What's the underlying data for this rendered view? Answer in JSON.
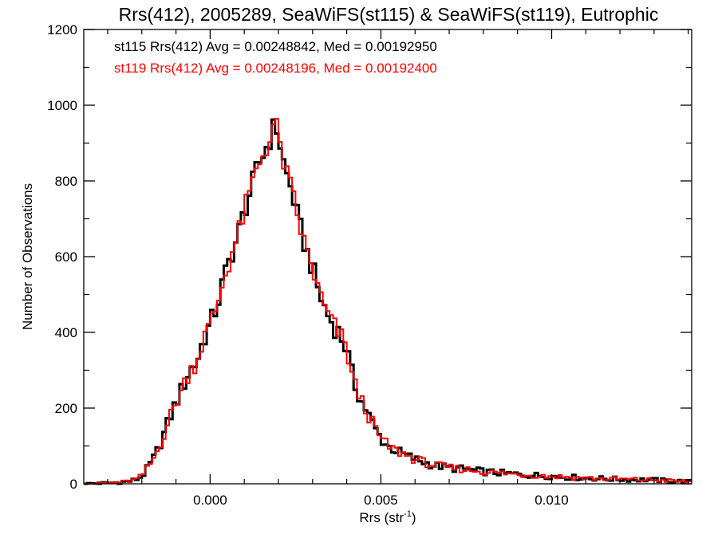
{
  "chart_data": {
    "type": "histogram-step",
    "title": "Rrs(412), 2005289, SeaWiFS(st115) & SeaWiFS(st119), Eutrophic",
    "xlabel": "Rrs (str",
    "xlabel_sup": "-1",
    "xlabel_end": ")",
    "ylabel": "Number of Observations",
    "xlim": [
      -0.0037,
      0.0141
    ],
    "ylim": [
      0,
      1200
    ],
    "xticks": [
      {
        "value": 0.0,
        "label": "0.000"
      },
      {
        "value": 0.005,
        "label": "0.005"
      },
      {
        "value": 0.01,
        "label": "0.010"
      }
    ],
    "yticks": [
      {
        "value": 0,
        "label": "0"
      },
      {
        "value": 200,
        "label": "200"
      },
      {
        "value": 400,
        "label": "400"
      },
      {
        "value": 600,
        "label": "600"
      },
      {
        "value": 800,
        "label": "800"
      },
      {
        "value": 1000,
        "label": "1000"
      },
      {
        "value": 1200,
        "label": "1200"
      }
    ],
    "bin_width": 0.0001,
    "series": [
      {
        "name": "st115",
        "color": "#000000",
        "legend": "st115 Rrs(412) Avg = 0.00248842, Med = 0.00192950",
        "points": [
          [
            -0.0037,
            0
          ],
          [
            -0.003,
            2
          ],
          [
            -0.0025,
            5
          ],
          [
            -0.0022,
            10
          ],
          [
            -0.002,
            20
          ],
          [
            -0.0018,
            45
          ],
          [
            -0.0016,
            75
          ],
          [
            -0.0014,
            120
          ],
          [
            -0.0012,
            170
          ],
          [
            -0.001,
            215
          ],
          [
            -0.0008,
            255
          ],
          [
            -0.0006,
            300
          ],
          [
            -0.0004,
            320
          ],
          [
            -0.0002,
            380
          ],
          [
            0.0,
            420
          ],
          [
            0.0002,
            470
          ],
          [
            0.0004,
            540
          ],
          [
            0.0006,
            600
          ],
          [
            0.0008,
            650
          ],
          [
            0.001,
            720
          ],
          [
            0.0012,
            780
          ],
          [
            0.0014,
            840
          ],
          [
            0.0016,
            880
          ],
          [
            0.0018,
            920
          ],
          [
            0.0019,
            955
          ],
          [
            0.002,
            920
          ],
          [
            0.0021,
            870
          ],
          [
            0.0022,
            830
          ],
          [
            0.0024,
            770
          ],
          [
            0.0026,
            690
          ],
          [
            0.0028,
            620
          ],
          [
            0.003,
            570
          ],
          [
            0.0032,
            500
          ],
          [
            0.0034,
            455
          ],
          [
            0.0036,
            420
          ],
          [
            0.0038,
            395
          ],
          [
            0.004,
            355
          ],
          [
            0.0042,
            270
          ],
          [
            0.0044,
            225
          ],
          [
            0.0046,
            190
          ],
          [
            0.0048,
            150
          ],
          [
            0.005,
            120
          ],
          [
            0.0052,
            100
          ],
          [
            0.0055,
            85
          ],
          [
            0.006,
            65
          ],
          [
            0.0065,
            50
          ],
          [
            0.007,
            42
          ],
          [
            0.0075,
            38
          ],
          [
            0.008,
            32
          ],
          [
            0.009,
            25
          ],
          [
            0.01,
            20
          ],
          [
            0.011,
            15
          ],
          [
            0.012,
            12
          ],
          [
            0.013,
            10
          ],
          [
            0.0141,
            5
          ]
        ]
      },
      {
        "name": "st119",
        "color": "#ff0000",
        "legend": "st119 Rrs(412) Avg = 0.00248196, Med = 0.00192400",
        "points": [
          [
            -0.0037,
            0
          ],
          [
            -0.003,
            2
          ],
          [
            -0.0025,
            5
          ],
          [
            -0.0022,
            10
          ],
          [
            -0.002,
            20
          ],
          [
            -0.0018,
            45
          ],
          [
            -0.0016,
            75
          ],
          [
            -0.0014,
            120
          ],
          [
            -0.0012,
            170
          ],
          [
            -0.001,
            215
          ],
          [
            -0.0008,
            255
          ],
          [
            -0.0006,
            300
          ],
          [
            -0.0004,
            320
          ],
          [
            -0.0002,
            380
          ],
          [
            0.0,
            420
          ],
          [
            0.0002,
            470
          ],
          [
            0.0004,
            540
          ],
          [
            0.0006,
            600
          ],
          [
            0.0008,
            650
          ],
          [
            0.001,
            720
          ],
          [
            0.0012,
            780
          ],
          [
            0.0014,
            840
          ],
          [
            0.0016,
            880
          ],
          [
            0.0018,
            920
          ],
          [
            0.0019,
            960
          ],
          [
            0.002,
            920
          ],
          [
            0.0021,
            870
          ],
          [
            0.0022,
            830
          ],
          [
            0.0024,
            770
          ],
          [
            0.0026,
            690
          ],
          [
            0.0028,
            620
          ],
          [
            0.003,
            570
          ],
          [
            0.0032,
            500
          ],
          [
            0.0034,
            455
          ],
          [
            0.0036,
            420
          ],
          [
            0.0038,
            395
          ],
          [
            0.004,
            355
          ],
          [
            0.0042,
            270
          ],
          [
            0.0044,
            225
          ],
          [
            0.0046,
            190
          ],
          [
            0.0048,
            150
          ],
          [
            0.005,
            120
          ],
          [
            0.0052,
            100
          ],
          [
            0.0055,
            85
          ],
          [
            0.006,
            65
          ],
          [
            0.0065,
            50
          ],
          [
            0.007,
            42
          ],
          [
            0.0075,
            38
          ],
          [
            0.008,
            32
          ],
          [
            0.009,
            25
          ],
          [
            0.01,
            20
          ],
          [
            0.011,
            15
          ],
          [
            0.012,
            12
          ],
          [
            0.013,
            10
          ],
          [
            0.0141,
            5
          ]
        ]
      }
    ]
  }
}
